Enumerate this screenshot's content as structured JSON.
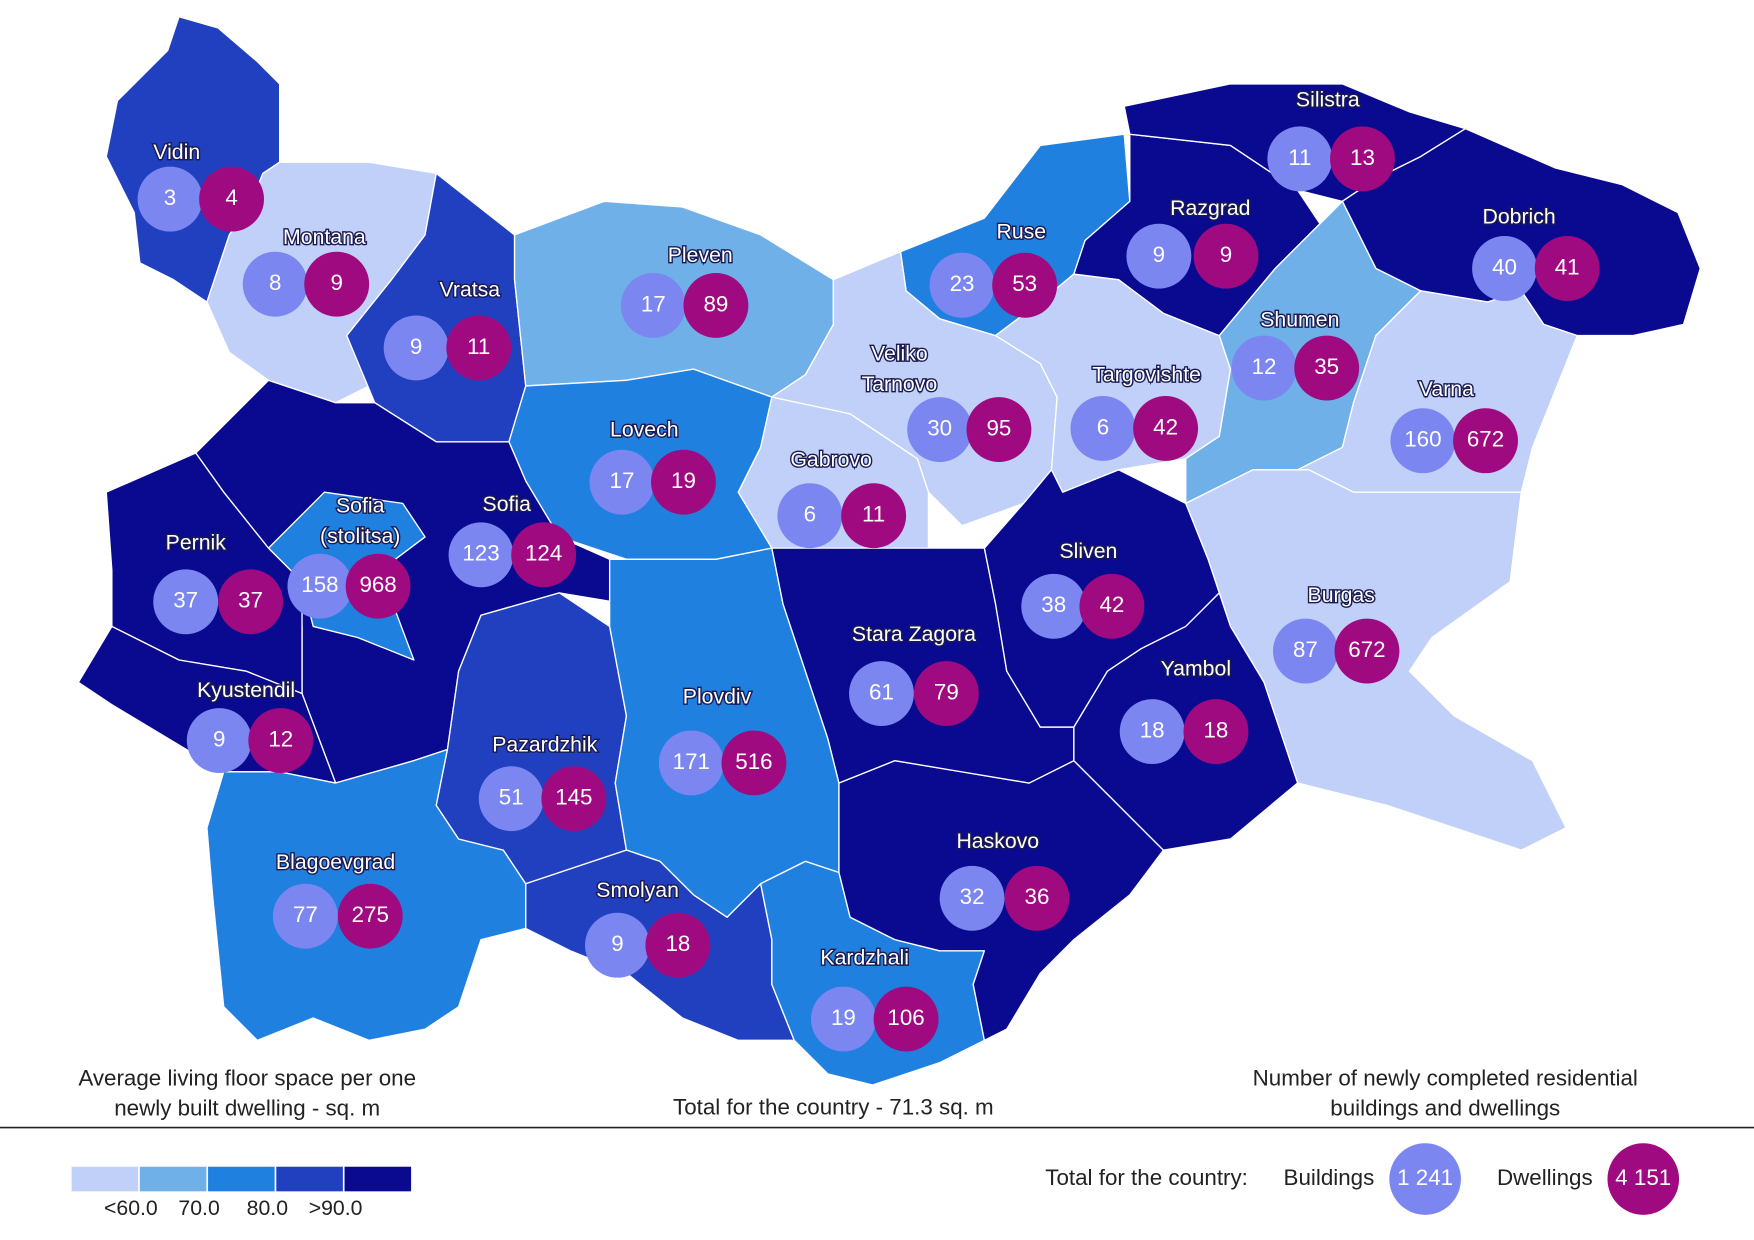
{
  "map": {
    "regions": [
      {
        "name": "Vidin",
        "color": "#2040c0",
        "buildings": 3,
        "dwellings": 4
      },
      {
        "name": "Montana",
        "color": "#c0d0f8",
        "buildings": 8,
        "dwellings": 9
      },
      {
        "name": "Vratsa",
        "color": "#2040c0",
        "buildings": 9,
        "dwellings": 11
      },
      {
        "name": "Pleven",
        "color": "#70b0e8",
        "buildings": 17,
        "dwellings": 89
      },
      {
        "name": "Lovech",
        "color": "#2080e0",
        "buildings": 17,
        "dwellings": 19
      },
      {
        "name": "Ruse",
        "color": "#2080e0",
        "buildings": 23,
        "dwellings": 53
      },
      {
        "name": "Veliko\nTarnovo",
        "color": "#c0d0f8",
        "buildings": 30,
        "dwellings": 95
      },
      {
        "name": "Gabrovo",
        "color": "#c0d0f8",
        "buildings": 6,
        "dwellings": 11
      },
      {
        "name": "Targovishte",
        "color": "#c0d0f8",
        "buildings": 6,
        "dwellings": 42
      },
      {
        "name": "Razgrad",
        "color": "#0a0a90",
        "buildings": 9,
        "dwellings": 9
      },
      {
        "name": "Silistra",
        "color": "#0a0a90",
        "buildings": 11,
        "dwellings": 13
      },
      {
        "name": "Dobrich",
        "color": "#0a0a90",
        "buildings": 40,
        "dwellings": 41
      },
      {
        "name": "Shumen",
        "color": "#70b0e8",
        "buildings": 12,
        "dwellings": 35
      },
      {
        "name": "Varna",
        "color": "#c0d0f8",
        "buildings": 160,
        "dwellings": 672
      },
      {
        "name": "Burgas",
        "color": "#c0d0f8",
        "buildings": 87,
        "dwellings": 672
      },
      {
        "name": "Sofia",
        "color": "#0a0a90",
        "buildings": 123,
        "dwellings": 124
      },
      {
        "name": "Sofia\n(stolitsa)",
        "color": "#2080e0",
        "buildings": 158,
        "dwellings": 968
      },
      {
        "name": "Pernik",
        "color": "#0a0a90",
        "buildings": 37,
        "dwellings": 37
      },
      {
        "name": "Kyustendil",
        "color": "#0a0a90",
        "buildings": 9,
        "dwellings": 12
      },
      {
        "name": "Blagoevgrad",
        "color": "#2080e0",
        "buildings": 77,
        "dwellings": 275
      },
      {
        "name": "Pazardzhik",
        "color": "#2040c0",
        "buildings": 51,
        "dwellings": 145
      },
      {
        "name": "Plovdiv",
        "color": "#2080e0",
        "buildings": 171,
        "dwellings": 516
      },
      {
        "name": "Smolyan",
        "color": "#2040c0",
        "buildings": 9,
        "dwellings": 18
      },
      {
        "name": "Kardzhali",
        "color": "#2080e0",
        "buildings": 19,
        "dwellings": 106
      },
      {
        "name": "Haskovo",
        "color": "#0a0a90",
        "buildings": 32,
        "dwellings": 36
      },
      {
        "name": "Stara Zagora",
        "color": "#0a0a90",
        "buildings": 61,
        "dwellings": 79
      },
      {
        "name": "Sliven",
        "color": "#0a0a90",
        "buildings": 38,
        "dwellings": 42
      },
      {
        "name": "Yambol",
        "color": "#0a0a90",
        "buildings": 18,
        "dwellings": 18
      }
    ],
    "buildings_color": "#7b86f0",
    "dwellings_color": "#a00a80",
    "legend_title": "Average living floor space per one\nnewly built dwelling - sq. m",
    "country_note": "Total for the country - 71.3 sq. m",
    "counts_title": "Number of newly completed residential\nbuildings and dwellings",
    "legend": {
      "colors": [
        "#c0d0f8",
        "#70b0e8",
        "#2080e0",
        "#2040c0",
        "#0a0a90"
      ],
      "labels": [
        "<60.0",
        "70.0",
        "80.0",
        ">90.0"
      ]
    },
    "totals": {
      "label": "Total for the country:",
      "buildings_label": "Buildings",
      "buildings": {
        "value": 1241,
        "label": "1 241"
      },
      "dwellings_label": "Dwellings",
      "dwellings": {
        "value": 4151,
        "label": "4 151"
      }
    }
  }
}
